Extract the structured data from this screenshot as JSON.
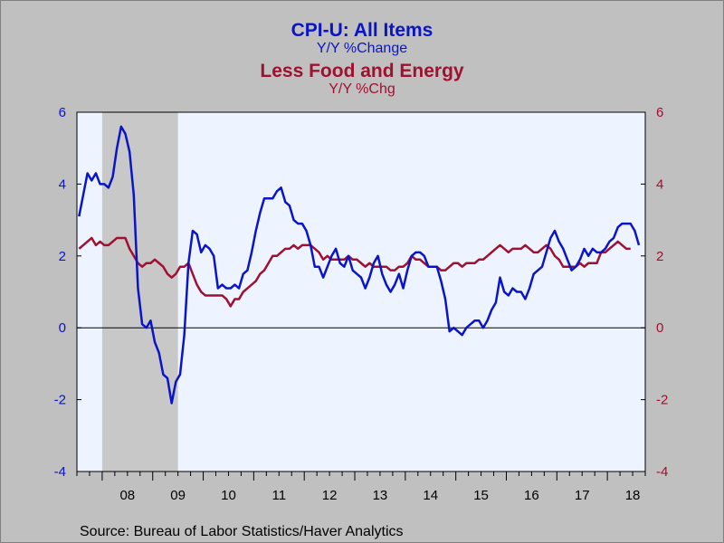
{
  "chart_data": {
    "type": "line",
    "title_primary": "CPI-U: All Items",
    "subtitle_primary": "Y/Y %Change",
    "title_secondary": "Less Food and Energy",
    "subtitle_secondary": "Y/Y %Chg",
    "source": "Source:  Bureau of Labor Statistics/Haver Analytics",
    "ylim": [
      -4,
      6
    ],
    "yticks": [
      -4,
      -2,
      0,
      2,
      4,
      6
    ],
    "xlim": [
      2007.5,
      2018.75
    ],
    "xtick_labels": [
      "08",
      "09",
      "10",
      "11",
      "12",
      "13",
      "14",
      "15",
      "16",
      "17",
      "18"
    ],
    "recession_shading": {
      "start": 2008.0,
      "end": 2009.5
    },
    "zero_line": true,
    "grid": false,
    "colors": {
      "cpi_all_items": "#0a14c8",
      "core": "#a01030",
      "plot_bg": "#eef4ff",
      "recession": "#c8c8c8",
      "left_axis": "#0a14c8",
      "right_axis": "#a01030"
    },
    "series": [
      {
        "key": "cpi_all_items",
        "axis": "left",
        "start": [
          2007,
          7
        ],
        "values": [
          3.1,
          3.7,
          4.3,
          4.1,
          4.3,
          4.0,
          4.0,
          3.9,
          4.2,
          5.0,
          5.6,
          5.4,
          4.9,
          3.7,
          1.1,
          0.1,
          0.0,
          0.2,
          -0.4,
          -0.7,
          -1.3,
          -1.4,
          -2.1,
          -1.5,
          -1.3,
          -0.2,
          1.8,
          2.7,
          2.6,
          2.1,
          2.3,
          2.2,
          2.0,
          1.1,
          1.2,
          1.1,
          1.1,
          1.2,
          1.1,
          1.5,
          1.6,
          2.1,
          2.7,
          3.2,
          3.6,
          3.6,
          3.6,
          3.8,
          3.9,
          3.5,
          3.4,
          3.0,
          2.9,
          2.9,
          2.7,
          2.3,
          1.7,
          1.7,
          1.4,
          1.7,
          2.0,
          2.2,
          1.8,
          1.7,
          2.0,
          1.6,
          1.5,
          1.4,
          1.1,
          1.4,
          1.8,
          2.0,
          1.5,
          1.2,
          1.0,
          1.2,
          1.5,
          1.1,
          1.6,
          2.0,
          2.1,
          2.1,
          2.0,
          1.7,
          1.7,
          1.7,
          1.3,
          0.8,
          -0.1,
          0.0,
          -0.1,
          -0.2,
          0.0,
          0.1,
          0.2,
          0.2,
          0.0,
          0.2,
          0.5,
          0.7,
          1.4,
          1.0,
          0.9,
          1.1,
          1.0,
          1.0,
          0.8,
          1.1,
          1.5,
          1.6,
          1.7,
          2.1,
          2.5,
          2.7,
          2.4,
          2.2,
          1.9,
          1.6,
          1.7,
          1.9,
          2.2,
          2.0,
          2.2,
          2.1,
          2.1,
          2.2,
          2.4,
          2.5,
          2.8,
          2.9,
          2.9,
          2.9,
          2.7,
          2.3
        ]
      },
      {
        "key": "core",
        "axis": "right",
        "start": [
          2007,
          7
        ],
        "values": [
          2.2,
          2.3,
          2.4,
          2.5,
          2.3,
          2.4,
          2.3,
          2.3,
          2.4,
          2.5,
          2.5,
          2.5,
          2.2,
          2.0,
          1.8,
          1.7,
          1.8,
          1.8,
          1.9,
          1.8,
          1.7,
          1.5,
          1.4,
          1.5,
          1.7,
          1.7,
          1.8,
          1.5,
          1.2,
          1.0,
          0.9,
          0.9,
          0.9,
          0.9,
          0.9,
          0.8,
          0.6,
          0.8,
          0.8,
          1.0,
          1.1,
          1.2,
          1.3,
          1.5,
          1.6,
          1.8,
          2.0,
          2.0,
          2.1,
          2.2,
          2.2,
          2.3,
          2.2,
          2.3,
          2.3,
          2.3,
          2.2,
          2.1,
          1.9,
          2.0,
          1.9,
          1.9,
          1.9,
          1.9,
          2.0,
          1.9,
          1.9,
          1.8,
          1.7,
          1.8,
          1.7,
          1.7,
          1.7,
          1.7,
          1.6,
          1.6,
          1.7,
          1.7,
          1.8,
          2.0,
          1.9,
          1.9,
          1.8,
          1.7,
          1.7,
          1.7,
          1.6,
          1.6,
          1.7,
          1.8,
          1.8,
          1.7,
          1.8,
          1.8,
          1.8,
          1.9,
          1.9,
          2.0,
          2.1,
          2.2,
          2.3,
          2.2,
          2.1,
          2.2,
          2.2,
          2.2,
          2.3,
          2.2,
          2.1,
          2.1,
          2.2,
          2.3,
          2.2,
          2.0,
          1.9,
          1.7,
          1.7,
          1.7,
          1.7,
          1.8,
          1.7,
          1.8,
          1.8,
          1.8,
          2.1,
          2.1,
          2.2,
          2.3,
          2.4,
          2.3,
          2.2,
          2.2
        ]
      }
    ]
  }
}
